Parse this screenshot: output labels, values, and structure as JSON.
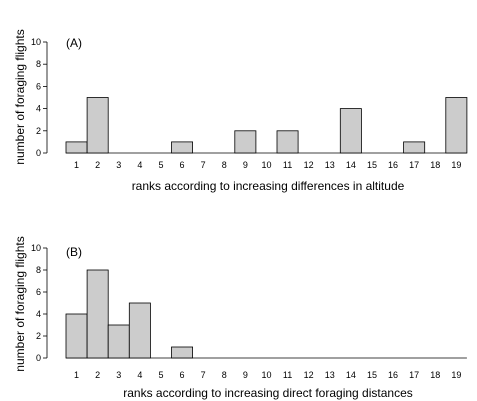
{
  "chart_data": [
    {
      "type": "bar",
      "panel_label": "(A)",
      "categories": [
        "1",
        "2",
        "3",
        "4",
        "5",
        "6",
        "7",
        "8",
        "9",
        "10",
        "11",
        "12",
        "13",
        "14",
        "15",
        "16",
        "17",
        "18",
        "19"
      ],
      "values": [
        1,
        5,
        0,
        0,
        0,
        1,
        0,
        0,
        2,
        0,
        2,
        0,
        0,
        4,
        0,
        0,
        1,
        0,
        5
      ],
      "xlabel": "ranks according to increasing differences in altitude",
      "ylabel": "number of foraging flights",
      "ylim": [
        0,
        10
      ],
      "yticks": [
        0,
        2,
        4,
        6,
        8,
        10
      ],
      "bar_color": "#cccccc"
    },
    {
      "type": "bar",
      "panel_label": "(B)",
      "categories": [
        "1",
        "2",
        "3",
        "4",
        "5",
        "6",
        "7",
        "8",
        "9",
        "10",
        "11",
        "12",
        "13",
        "14",
        "15",
        "16",
        "17",
        "18",
        "19"
      ],
      "values": [
        4,
        8,
        3,
        5,
        0,
        1,
        0,
        0,
        0,
        0,
        0,
        0,
        0,
        0,
        0,
        0,
        0,
        0,
        0
      ],
      "xlabel": "ranks according to increasing direct foraging distances",
      "ylabel": "number of foraging flights",
      "ylim": [
        0,
        10
      ],
      "yticks": [
        0,
        2,
        4,
        6,
        8,
        10
      ],
      "bar_color": "#cccccc"
    }
  ]
}
